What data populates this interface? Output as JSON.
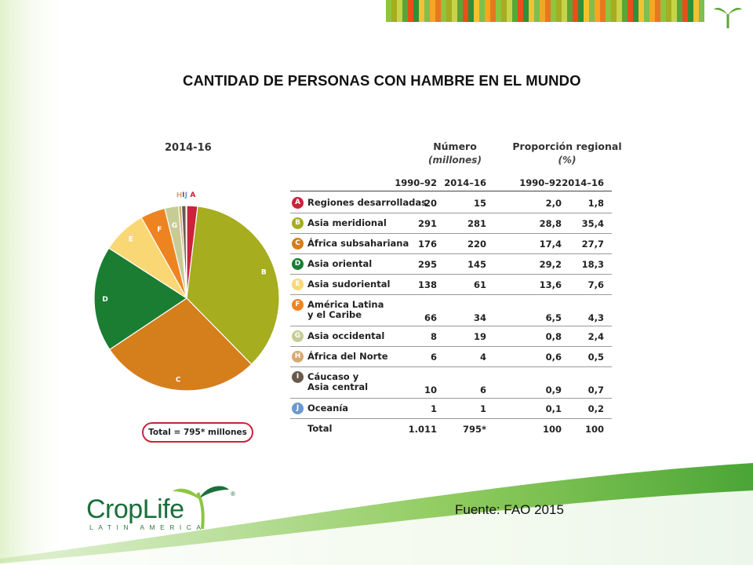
{
  "slide": {
    "title": "CANTIDAD DE PERSONAS CON HAMBRE EN EL MUNDO",
    "source": "Fuente: FAO 2015"
  },
  "brand": {
    "name": "CropLife",
    "subtitle": "LATIN AMERICA",
    "registered": "®"
  },
  "colors": {
    "brand_green": "#1b6f3a",
    "accent_green": "#8cc63f",
    "badge_border": "#c8243c"
  },
  "chart_data": [
    {
      "type": "pie",
      "title": "2014-16",
      "total_label": "Total = 795* millones",
      "slices": [
        {
          "label": "A",
          "value": 15,
          "color": "#c8243c"
        },
        {
          "label": "B",
          "value": 281,
          "color": "#a6ad1f"
        },
        {
          "label": "C",
          "value": 220,
          "color": "#d57e1c"
        },
        {
          "label": "D",
          "value": 145,
          "color": "#1a7d32"
        },
        {
          "label": "E",
          "value": 61,
          "color": "#f9d774"
        },
        {
          "label": "F",
          "value": 34,
          "color": "#ee8421"
        },
        {
          "label": "G",
          "value": 19,
          "color": "#c7cc96"
        },
        {
          "label": "H",
          "value": 4,
          "color": "#d8a870"
        },
        {
          "label": "I",
          "value": 6,
          "color": "#6b5a4c"
        },
        {
          "label": "J",
          "value": 1,
          "color": "#6b98d1"
        }
      ]
    },
    {
      "type": "table",
      "headers": {
        "numero": "Número",
        "numero_unit": "(millones)",
        "proporcion": "Proporción regional",
        "proporcion_unit": "(%)",
        "years": [
          "1990–92",
          "2014–16",
          "1990–92",
          "2014–16"
        ]
      },
      "rows": [
        {
          "letter": "A",
          "region": "Regiones desarrolladas",
          "n1990": "20",
          "n2014": "15",
          "p1990": "2,0",
          "p2014": "1,8",
          "color": "#c8243c"
        },
        {
          "letter": "B",
          "region": "Asia meridional",
          "n1990": "291",
          "n2014": "281",
          "p1990": "28,8",
          "p2014": "35,4",
          "color": "#a6ad1f"
        },
        {
          "letter": "C",
          "region": "África subsahariana",
          "n1990": "176",
          "n2014": "220",
          "p1990": "17,4",
          "p2014": "27,7",
          "color": "#d57e1c"
        },
        {
          "letter": "D",
          "region": "Asia oriental",
          "n1990": "295",
          "n2014": "145",
          "p1990": "29,2",
          "p2014": "18,3",
          "color": "#1a7d32"
        },
        {
          "letter": "E",
          "region": "Asia sudoriental",
          "n1990": "138",
          "n2014": "61",
          "p1990": "13,6",
          "p2014": "7,6",
          "color": "#f9d774"
        },
        {
          "letter": "F",
          "region": "América Latina\ny el Caribe",
          "n1990": "66",
          "n2014": "34",
          "p1990": "6,5",
          "p2014": "4,3",
          "color": "#ee8421"
        },
        {
          "letter": "G",
          "region": "Asia occidental",
          "n1990": "8",
          "n2014": "19",
          "p1990": "0,8",
          "p2014": "2,4",
          "color": "#c7cc96"
        },
        {
          "letter": "H",
          "region": "África del Norte",
          "n1990": "6",
          "n2014": "4",
          "p1990": "0,6",
          "p2014": "0,5",
          "color": "#d8a870"
        },
        {
          "letter": "I",
          "region": "Cáucaso y\nAsia central",
          "n1990": "10",
          "n2014": "6",
          "p1990": "0,9",
          "p2014": "0,7",
          "color": "#6b5a4c"
        },
        {
          "letter": "J",
          "region": "Oceanía",
          "n1990": "1",
          "n2014": "1",
          "p1990": "0,1",
          "p2014": "0,2",
          "color": "#6b98d1"
        }
      ],
      "total": {
        "region": "Total",
        "n1990": "1.011",
        "n2014": "795*",
        "p1990": "100",
        "p2014": "100"
      }
    }
  ]
}
